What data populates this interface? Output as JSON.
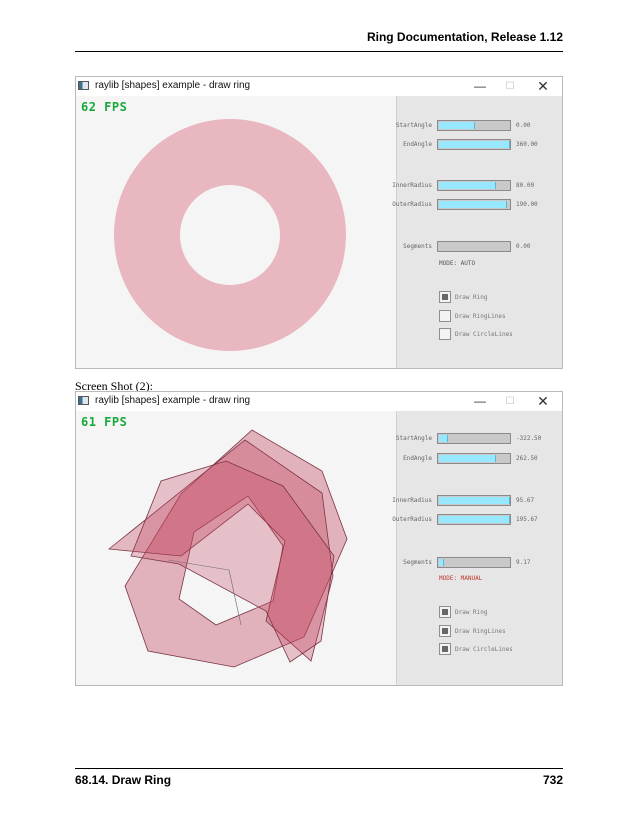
{
  "header": {
    "title": "Ring Documentation, Release 1.12"
  },
  "footer": {
    "section": "68.14.  Draw Ring",
    "page": "732"
  },
  "caption2": "Screen Shot (2):",
  "colors": {
    "ring_fill": "#e8b7c0",
    "ring_fill_alpha": "#c2455f",
    "fps_green": "#19a83a",
    "mode_red": "#c0392b",
    "slider_fill": "#97e8ff"
  },
  "window1": {
    "title": "raylib [shapes] example - draw ring",
    "controls": {
      "minimize": "—",
      "maximize": "☐",
      "close": "✕"
    },
    "fps": "62 FPS",
    "sliders": [
      {
        "label": "StartAngle",
        "value": "0.00",
        "fill": 0.5
      },
      {
        "label": "EndAngle",
        "value": "360.00",
        "fill": 1.0
      },
      {
        "label": "InnerRadius",
        "value": "80.00",
        "fill": 0.8
      },
      {
        "label": "OuterRadius",
        "value": "190.00",
        "fill": 0.95
      },
      {
        "label": "Segments",
        "value": "0.00",
        "fill": 0.0
      }
    ],
    "mode": "MODE: AUTO",
    "checkboxes": [
      {
        "label": "Draw Ring",
        "checked": true
      },
      {
        "label": "Draw RingLines",
        "checked": false
      },
      {
        "label": "Draw CircleLines",
        "checked": false
      }
    ]
  },
  "window2": {
    "title": "raylib [shapes] example - draw ring",
    "controls": {
      "minimize": "—",
      "maximize": "☐",
      "close": "✕"
    },
    "fps": "61 FPS",
    "sliders": [
      {
        "label": "StartAngle",
        "value": "-322.50",
        "fill": 0.12
      },
      {
        "label": "EndAngle",
        "value": "262.50",
        "fill": 0.8
      },
      {
        "label": "InnerRadius",
        "value": "95.67",
        "fill": 1.0
      },
      {
        "label": "OuterRadius",
        "value": "195.67",
        "fill": 1.0
      },
      {
        "label": "Segments",
        "value": "9.17",
        "fill": 0.06
      }
    ],
    "mode": "MODE: MANUAL",
    "checkboxes": [
      {
        "label": "Draw Ring",
        "checked": true
      },
      {
        "label": "Draw RingLines",
        "checked": true
      },
      {
        "label": "Draw CircleLines",
        "checked": true
      }
    ]
  }
}
